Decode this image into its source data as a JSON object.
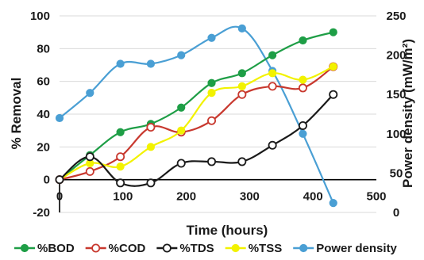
{
  "chart_data": {
    "type": "line",
    "xlabel": "Time (hours)",
    "ylabel": "% Removal",
    "y2label": "Power density  (mW/m²)",
    "xlim": [
      0,
      500
    ],
    "ylim": [
      -20,
      100
    ],
    "y2lim": [
      0,
      250
    ],
    "xticks": [
      "0",
      "100",
      "200",
      "300",
      "400",
      "500"
    ],
    "yticks": [
      "-20",
      "0",
      "20",
      "40",
      "60",
      "80",
      "100"
    ],
    "y2ticks": [
      "0",
      "50",
      "100",
      "150",
      "200",
      "250"
    ],
    "legend_position": "bottom",
    "series": [
      {
        "name": "%BOD",
        "color": "#1e9e46",
        "axis": "left",
        "x": [
          0,
          48,
          96,
          144,
          192,
          240,
          288,
          336,
          384,
          432
        ],
        "y": [
          0,
          15,
          29,
          34,
          44,
          59,
          65,
          76,
          85,
          90
        ]
      },
      {
        "name": "%COD",
        "color": "#c8382e",
        "axis": "left",
        "x": [
          0,
          48,
          96,
          144,
          192,
          240,
          288,
          336,
          384,
          432
        ],
        "y": [
          0,
          5,
          14,
          32,
          29,
          36,
          52,
          57,
          56,
          69
        ]
      },
      {
        "name": "%TDS",
        "color": "#1a1a1a",
        "axis": "left",
        "x": [
          0,
          48,
          96,
          144,
          192,
          240,
          288,
          336,
          384,
          432
        ],
        "y": [
          0,
          14,
          -2,
          -2,
          10,
          11,
          11,
          21,
          33,
          52
        ]
      },
      {
        "name": "%TSS",
        "color": "#f2f200",
        "axis": "left",
        "x": [
          0,
          48,
          96,
          144,
          192,
          240,
          288,
          336,
          384,
          432
        ],
        "y": [
          0,
          10,
          8,
          20,
          30,
          53,
          57,
          65,
          61,
          69
        ]
      },
      {
        "name": "Power density",
        "color": "#4a9fd4",
        "axis": "right",
        "x": [
          0,
          48,
          96,
          144,
          192,
          240,
          288,
          336,
          384,
          432
        ],
        "y": [
          120,
          152,
          189,
          189,
          200,
          222,
          234,
          180,
          100,
          12
        ]
      }
    ]
  }
}
